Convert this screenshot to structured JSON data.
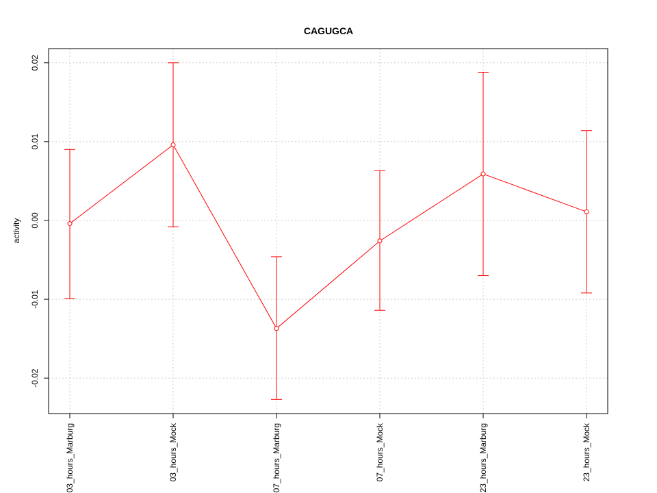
{
  "chart_data": {
    "type": "line",
    "title": "CAGUGCA",
    "xlabel": "",
    "ylabel": "activity",
    "categories": [
      "03_hours_Marburg",
      "03_hours_Mock",
      "07_hours_Marburg",
      "07_hours_Mock",
      "23_hours_Marburg",
      "23_hours_Mock"
    ],
    "series": [
      {
        "values": [
          -0.0004,
          0.0096,
          -0.0137,
          -0.0026,
          0.0059,
          0.0011
        ],
        "error_low": [
          -0.0099,
          -0.0008,
          -0.0227,
          -0.0114,
          -0.007,
          -0.0092
        ],
        "error_high": [
          0.009,
          0.02,
          -0.0046,
          0.0063,
          0.0188,
          0.0114
        ],
        "color": "#ff0000"
      }
    ],
    "ylim": [
      -0.0245,
      0.0218
    ],
    "yticks": [
      -0.02,
      -0.01,
      0.0,
      0.01,
      0.02
    ],
    "ytick_labels": [
      "-0.02",
      "-0.01",
      "0.00",
      "0.01",
      "0.02"
    ],
    "grid": true,
    "grid_style": "dotted",
    "legend": "none"
  }
}
